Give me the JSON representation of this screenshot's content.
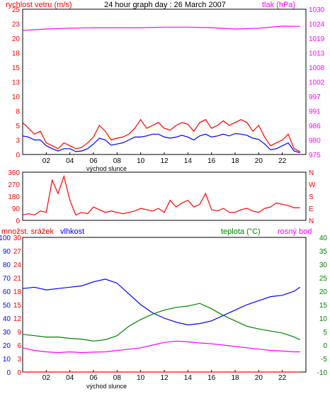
{
  "chart_data": [
    {
      "type": "line",
      "title": "24 hour graph day : 26 March 2007",
      "left_axis_label": "rychlost vetru (m/s)",
      "right_axis_label": "tlak (hPa)",
      "x_label": "východ slunce",
      "x_ticks": [
        "02",
        "04",
        "06",
        "08",
        "10",
        "12",
        "14",
        "16",
        "18",
        "20",
        "22"
      ],
      "left_ticks": [
        "0",
        "3",
        "5",
        "8",
        "10",
        "13",
        "15",
        "18",
        "20",
        "23",
        "25"
      ],
      "right_ticks": [
        "975",
        "980",
        "986",
        "991",
        "997",
        "1002",
        "1008",
        "1013",
        "1019",
        "1024",
        "1030"
      ],
      "ylim_left": [
        0,
        25
      ],
      "ylim_right": [
        975,
        1030
      ],
      "xlim": [
        0,
        24
      ],
      "series": [
        {
          "color": "#ff0000",
          "x": [
            0,
            0.5,
            1,
            1.5,
            2,
            2.5,
            3,
            3.5,
            4,
            4.5,
            5,
            5.5,
            6,
            6.5,
            7,
            7.5,
            8,
            8.5,
            9,
            9.5,
            10,
            10.5,
            11,
            11.5,
            12,
            12.5,
            13,
            13.5,
            14,
            14.5,
            15,
            15.5,
            16,
            16.5,
            17,
            17.5,
            18,
            18.5,
            19,
            19.5,
            20,
            20.5,
            21,
            21.5,
            22,
            22.5,
            23,
            23.5
          ],
          "y": [
            5.5,
            4.5,
            3.5,
            4,
            2,
            1.5,
            1,
            2,
            1.5,
            1,
            1.2,
            2,
            3,
            5,
            4,
            2.5,
            2.8,
            3,
            3.5,
            4.5,
            6,
            4.5,
            5,
            5.5,
            4.5,
            4.2,
            5,
            5.5,
            5.2,
            4,
            5.5,
            6,
            4.5,
            5,
            5.8,
            5,
            5.5,
            6,
            5.5,
            4,
            5,
            3,
            1.5,
            2,
            2.5,
            3.5,
            1,
            0.5
          ]
        },
        {
          "color": "#0000ff",
          "x": [
            0,
            0.5,
            1,
            1.5,
            2,
            2.5,
            3,
            3.5,
            4,
            4.5,
            5,
            5.5,
            6,
            6.5,
            7,
            7.5,
            8,
            8.5,
            9,
            9.5,
            10,
            10.5,
            11,
            11.5,
            12,
            12.5,
            13,
            13.5,
            14,
            14.5,
            15,
            15.5,
            16,
            16.5,
            17,
            17.5,
            18,
            18.5,
            19,
            19.5,
            20,
            20.5,
            21,
            21.5,
            22,
            22.5,
            23,
            23.5
          ],
          "y": [
            3.2,
            3,
            2.5,
            2.5,
            1.5,
            1,
            0.6,
            1,
            1,
            0.5,
            0.6,
            1,
            1.8,
            2.8,
            2.5,
            1.6,
            1.8,
            2,
            2.5,
            3,
            3,
            3.2,
            3.5,
            3.5,
            3,
            2.8,
            3,
            3.3,
            3,
            2.5,
            3.2,
            3.5,
            3,
            3.2,
            3.5,
            3.2,
            3.6,
            3.5,
            3.3,
            2.8,
            2.6,
            1.8,
            0.8,
            1,
            1.5,
            2,
            0.6,
            0.3
          ]
        },
        {
          "color": "#ff00ff",
          "axis": "right",
          "x": [
            0,
            2,
            4,
            6,
            8,
            10,
            12,
            14,
            16,
            18,
            20,
            22,
            23.5
          ],
          "y": [
            1022,
            1022.5,
            1022.8,
            1023,
            1023,
            1023,
            1023.2,
            1023.2,
            1023,
            1022.5,
            1022.8,
            1023.6,
            1023.5
          ]
        }
      ]
    },
    {
      "type": "line",
      "left_ticks": [
        "0",
        "90",
        "180",
        "270",
        "360"
      ],
      "right_ticks": [
        "N",
        "E",
        "S",
        "W",
        "N"
      ],
      "ylim": [
        0,
        360
      ],
      "xlim": [
        0,
        24
      ],
      "series": [
        {
          "color": "#ff0000",
          "x": [
            0,
            0.5,
            1,
            1.5,
            2,
            2.5,
            3,
            3.5,
            4,
            4.5,
            5,
            5.5,
            6,
            6.5,
            7,
            7.5,
            8,
            8.5,
            9,
            9.5,
            10,
            10.5,
            11,
            11.5,
            12,
            12.5,
            13,
            13.5,
            14,
            14.5,
            15,
            15.5,
            16,
            16.5,
            17,
            17.5,
            18,
            18.5,
            19,
            19.5,
            20,
            20.5,
            21,
            21.5,
            22,
            22.5,
            23,
            23.5
          ],
          "y": [
            40,
            50,
            40,
            70,
            60,
            300,
            200,
            330,
            150,
            40,
            60,
            50,
            100,
            80,
            60,
            70,
            60,
            50,
            60,
            70,
            90,
            80,
            70,
            90,
            60,
            150,
            100,
            130,
            150,
            100,
            120,
            200,
            80,
            70,
            90,
            60,
            60,
            80,
            90,
            70,
            60,
            90,
            100,
            130,
            120,
            110,
            95,
            95
          ]
        }
      ]
    },
    {
      "type": "line",
      "left_axis_label": "množst. srážek",
      "left_axis_label_2": "vlhkost",
      "right_axis_label": "teplota (°C)",
      "right_axis_label_2": "rosný bod",
      "x_label": "východ slunce",
      "x_ticks": [
        "02",
        "04",
        "06",
        "08",
        "10",
        "12",
        "14",
        "16",
        "18",
        "20",
        "22"
      ],
      "precip_ticks": [
        "0",
        "10",
        "20",
        "30",
        "40",
        "50",
        "60",
        "70",
        "80",
        "90",
        "100"
      ],
      "humidity_ticks": [
        "0",
        "3",
        "6",
        "9",
        "12",
        "15",
        "18",
        "21",
        "24",
        "27",
        "30"
      ],
      "temp_ticks": [
        "-10",
        "-5",
        "0",
        "5",
        "10",
        "15",
        "20",
        "25",
        "30",
        "35",
        "40"
      ],
      "ylim_humidity": [
        0,
        100
      ],
      "ylim_temp": [
        -10,
        40
      ],
      "xlim": [
        0,
        24
      ],
      "series": [
        {
          "color": "#0000ff",
          "axis": "humidity",
          "x": [
            0,
            1,
            2,
            3,
            4,
            5,
            6,
            7,
            8,
            9,
            10,
            11,
            12,
            13,
            14,
            15,
            16,
            17,
            18,
            19,
            20,
            21,
            22,
            23,
            23.5
          ],
          "y": [
            62,
            63,
            61,
            62,
            63,
            64,
            67,
            69,
            66,
            58,
            50,
            44,
            40,
            37,
            35,
            36,
            38,
            42,
            46,
            50,
            53,
            56,
            57,
            60,
            63
          ]
        },
        {
          "color": "#008000",
          "axis": "temp",
          "x": [
            0,
            1,
            2,
            3,
            4,
            5,
            6,
            7,
            8,
            9,
            10,
            11,
            12,
            13,
            14,
            15,
            16,
            17,
            18,
            19,
            20,
            21,
            22,
            23,
            23.5
          ],
          "y": [
            4,
            3.5,
            3,
            3,
            2.5,
            2.2,
            1.5,
            2,
            3.5,
            7,
            9.5,
            11.5,
            13,
            14,
            14.5,
            15.5,
            13.5,
            11,
            9,
            7,
            6,
            5.2,
            4.5,
            3,
            2
          ]
        },
        {
          "color": "#ff00ff",
          "axis": "temp",
          "x": [
            0,
            1,
            2,
            3,
            4,
            5,
            6,
            7,
            8,
            9,
            10,
            11,
            12,
            13,
            14,
            15,
            16,
            17,
            18,
            19,
            20,
            21,
            22,
            23,
            23.5
          ],
          "y": [
            -1,
            -2,
            -2.5,
            -2.8,
            -2.5,
            -2.8,
            -2.6,
            -2.5,
            -2,
            -1.5,
            -1,
            0,
            1,
            1.5,
            1.2,
            0.8,
            0.5,
            0,
            -0.5,
            -1,
            -1.5,
            -2,
            -2.2,
            -2.5,
            -2.5
          ]
        },
        {
          "color": "#ff0000",
          "axis": "precip",
          "x": [
            0,
            23.5
          ],
          "y": [
            0,
            0
          ]
        }
      ]
    }
  ]
}
